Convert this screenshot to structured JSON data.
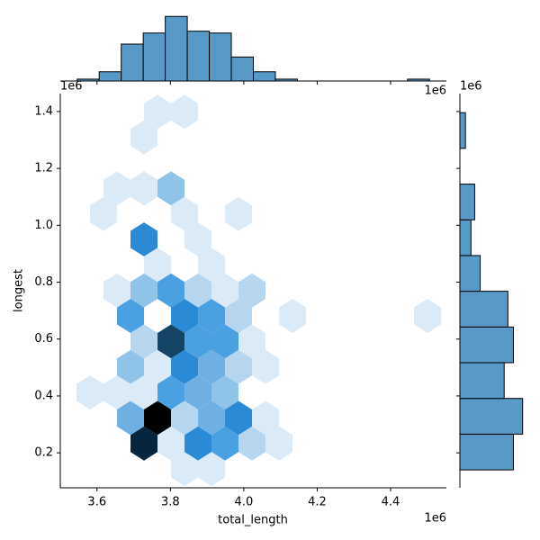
{
  "chart_data": [
    {
      "type": "hexbin",
      "x_label": "total_length",
      "y_label": "longest",
      "x_offset": "1e6",
      "y_offset": "1e6",
      "x": [
        3764900,
        3838500,
        3728100,
        3654500,
        3728100,
        3801700,
        3617700,
        3838500,
        3985600,
        3728100,
        3875300,
        3764900,
        3912100,
        3654500,
        3728100,
        3801700,
        3875300,
        3948800,
        4022400,
        3691300,
        3838500,
        3912100,
        3985600,
        4132800,
        4500600,
        3728100,
        3801700,
        3875300,
        3948800,
        4022400,
        3691300,
        3764900,
        3838500,
        3912100,
        3985600,
        4059200,
        3580900,
        3654500,
        3728100,
        3801700,
        3875300,
        3948800,
        3691300,
        3764900,
        3838500,
        3912100,
        3985600,
        4059200,
        3728100,
        3801700,
        3875300,
        3948800,
        4022400,
        4096000,
        3838500,
        3912100
      ],
      "y": [
        1398800,
        1398800,
        1309100,
        1129700,
        1129700,
        1129700,
        1040000,
        1040000,
        1040000,
        950300,
        950300,
        860600,
        860600,
        770900,
        770900,
        770900,
        770900,
        770900,
        770900,
        681200,
        681200,
        681200,
        681200,
        681200,
        681200,
        591500,
        591500,
        591500,
        591500,
        591500,
        501800,
        501800,
        501800,
        501800,
        501800,
        501800,
        412100,
        412100,
        412100,
        412100,
        412100,
        412100,
        322400,
        322400,
        322400,
        322400,
        322400,
        322400,
        232700,
        232700,
        232700,
        232700,
        232700,
        232700,
        143000,
        143000
      ],
      "counts": [
        1,
        1,
        1,
        1,
        1,
        3,
        1,
        1,
        1,
        6,
        1,
        1,
        1,
        1,
        3,
        5,
        2,
        1,
        2,
        5,
        6,
        5,
        2,
        1,
        1,
        2,
        8,
        5,
        5,
        1,
        3,
        1,
        6,
        4,
        2,
        1,
        1,
        1,
        1,
        5,
        4,
        3,
        4,
        10,
        2,
        4,
        6,
        1,
        9,
        1,
        6,
        5,
        2,
        1,
        1,
        1
      ],
      "cmap": [
        "#dbeaf7",
        "#b6d6f0",
        "#8fc3e8",
        "#6fb0e4",
        "#4aa0e0",
        "#2a8ad6",
        "#1f6aa8",
        "#144466",
        "#062640",
        "#000000"
      ],
      "xlim": [
        3500000,
        4552000
      ],
      "ylim": [
        77000,
        1463000
      ],
      "xticks": [
        {
          "value": 3600000,
          "label": "3.6"
        },
        {
          "value": 3800000,
          "label": "3.8"
        },
        {
          "value": 4000000,
          "label": "4.0"
        },
        {
          "value": 4200000,
          "label": "4.2"
        },
        {
          "value": 4400000,
          "label": "4.4"
        }
      ],
      "yticks": [
        {
          "value": 200000,
          "label": "0.2"
        },
        {
          "value": 400000,
          "label": "0.4"
        },
        {
          "value": 600000,
          "label": "0.6"
        },
        {
          "value": 800000,
          "label": "0.8"
        },
        {
          "value": 1000000,
          "label": "1.0"
        },
        {
          "value": 1200000,
          "label": "1.2"
        },
        {
          "value": 1400000,
          "label": "1.4"
        }
      ]
    },
    {
      "type": "histogram",
      "orientation": "vertical",
      "x_offset": "1e6",
      "color": "#5799c7",
      "edgecolor": "#000000",
      "bins": [
        3546000,
        3606000,
        3666000,
        3726000,
        3786000,
        3846000,
        3906000,
        3966000,
        4026000,
        4086000,
        4146000,
        4206000,
        4266000,
        4326000,
        4386000,
        4446000,
        4506000
      ],
      "counts": [
        1,
        5,
        20,
        26,
        35,
        27,
        26,
        13,
        5,
        1,
        0,
        0,
        0,
        0,
        0,
        1
      ],
      "ylim": [
        0,
        40
      ]
    },
    {
      "type": "histogram",
      "orientation": "horizontal",
      "y_offset": "1e6",
      "color": "#5799c7",
      "edgecolor": "#000000",
      "bins": [
        140000,
        265600,
        391200,
        516800,
        642400,
        768000,
        893600,
        1019200,
        1144800,
        1270400,
        1396000
      ],
      "counts": [
        29,
        34,
        24,
        29,
        26,
        11,
        6,
        8,
        0,
        3
      ],
      "xlim": [
        0,
        40
      ]
    }
  ]
}
